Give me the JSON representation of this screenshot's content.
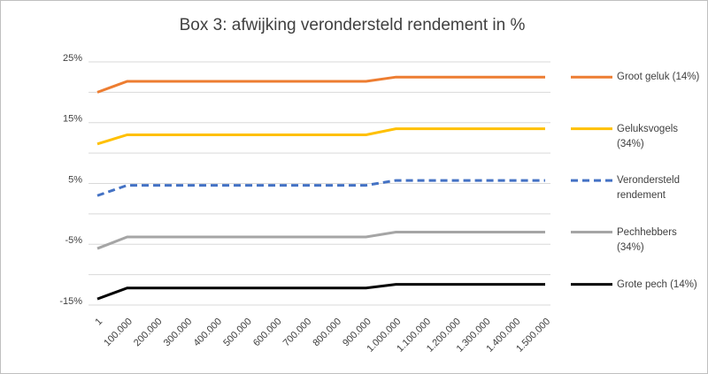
{
  "chart_data": {
    "type": "line",
    "title": "Box 3: afwijking verondersteld rendement in %",
    "categories": [
      "1",
      "100.000",
      "200.000",
      "300.000",
      "400.000",
      "500.000",
      "600.000",
      "700.000",
      "800.000",
      "900.000",
      "1.000.000",
      "1.100.000",
      "1.200.000",
      "1.300.000",
      "1.400.000",
      "1.500.000"
    ],
    "series": [
      {
        "name": "Groot geluk (14%)",
        "color": "#ed7d31",
        "line_style": "solid",
        "values": [
          20,
          21.8,
          21.8,
          21.8,
          21.8,
          21.8,
          21.8,
          21.8,
          21.8,
          21.8,
          22.5,
          22.5,
          22.5,
          22.5,
          22.5,
          22.5
        ]
      },
      {
        "name": "Geluksvogels (34%)",
        "color": "#ffc000",
        "line_style": "solid",
        "values": [
          11.5,
          13,
          13,
          13,
          13,
          13,
          13,
          13,
          13,
          13,
          14,
          14,
          14,
          14,
          14,
          14
        ]
      },
      {
        "name": "Verondersteld rendement",
        "color": "#4472c4",
        "line_style": "dashed",
        "values": [
          3,
          4.7,
          4.7,
          4.7,
          4.7,
          4.7,
          4.7,
          4.7,
          4.7,
          4.7,
          5.5,
          5.5,
          5.5,
          5.5,
          5.5,
          5.5
        ]
      },
      {
        "name": "Pechhebbers (34%)",
        "color": "#a5a5a5",
        "line_style": "solid",
        "values": [
          -5.7,
          -3.8,
          -3.8,
          -3.8,
          -3.8,
          -3.8,
          -3.8,
          -3.8,
          -3.8,
          -3.8,
          -3,
          -3,
          -3,
          -3,
          -3,
          -3
        ]
      },
      {
        "name": "Grote pech (14%)",
        "color": "#000000",
        "line_style": "solid",
        "values": [
          -14,
          -12.2,
          -12.2,
          -12.2,
          -12.2,
          -12.2,
          -12.2,
          -12.2,
          -12.2,
          -12.2,
          -11.6,
          -11.6,
          -11.6,
          -11.6,
          -11.6,
          -11.6
        ]
      }
    ],
    "ylim": [
      -15,
      25
    ],
    "yticks": [
      {
        "value": 25,
        "label": "25%"
      },
      {
        "value": 15,
        "label": "15%"
      },
      {
        "value": 5,
        "label": "5%"
      },
      {
        "value": -5,
        "label": "-5%"
      },
      {
        "value": -15,
        "label": "-15%"
      }
    ],
    "yminorticks": [
      20,
      10,
      0,
      -10
    ],
    "grid": true,
    "legend": "right"
  }
}
